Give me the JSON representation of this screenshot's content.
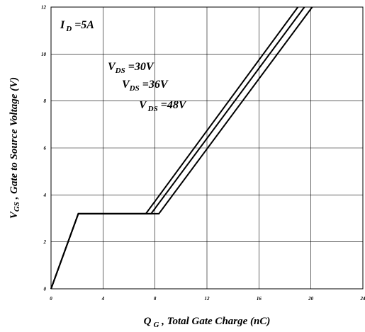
{
  "chart_data": {
    "type": "line",
    "x_axis": {
      "label_main": "Q",
      "label_sub": "G",
      "label_rest": " , Total Gate Charge (nC)",
      "range": [
        0,
        24
      ],
      "ticks": [
        "0",
        "4",
        "8",
        "12",
        "16",
        "20",
        "24"
      ],
      "grid": true
    },
    "y_axis": {
      "label_main": "V",
      "label_sub": "GS",
      "label_rest": " , Gate to Source Voltage (V)",
      "range": [
        0,
        12
      ],
      "ticks": [
        "0",
        "2",
        "4",
        "6",
        "8",
        "10",
        "12"
      ],
      "grid": true
    },
    "series": [
      {
        "name": "VDS=30V",
        "points": [
          [
            0,
            0
          ],
          [
            2.1,
            3.2
          ],
          [
            7.3,
            3.2
          ],
          [
            19.0,
            12
          ]
        ]
      },
      {
        "name": "VDS=36V",
        "points": [
          [
            0,
            0
          ],
          [
            2.1,
            3.2
          ],
          [
            7.7,
            3.2
          ],
          [
            19.5,
            12
          ]
        ]
      },
      {
        "name": "VDS=48V",
        "points": [
          [
            0,
            0
          ],
          [
            2.1,
            3.2
          ],
          [
            8.3,
            3.2
          ],
          [
            20.1,
            12
          ]
        ]
      }
    ],
    "annotations": [
      {
        "id": "id",
        "main": "I",
        "sub": "D",
        "rest": " =5A"
      },
      {
        "id": "vds30",
        "main": "V",
        "sub": "DS",
        "rest": " =30V"
      },
      {
        "id": "vds36",
        "main": "V",
        "sub": "DS",
        "rest": " =36V"
      },
      {
        "id": "vds48",
        "main": "V",
        "sub": "DS",
        "rest": " =48V"
      }
    ],
    "colors": {
      "line": "#000000",
      "grid": "#000000",
      "background": "#ffffff"
    }
  }
}
